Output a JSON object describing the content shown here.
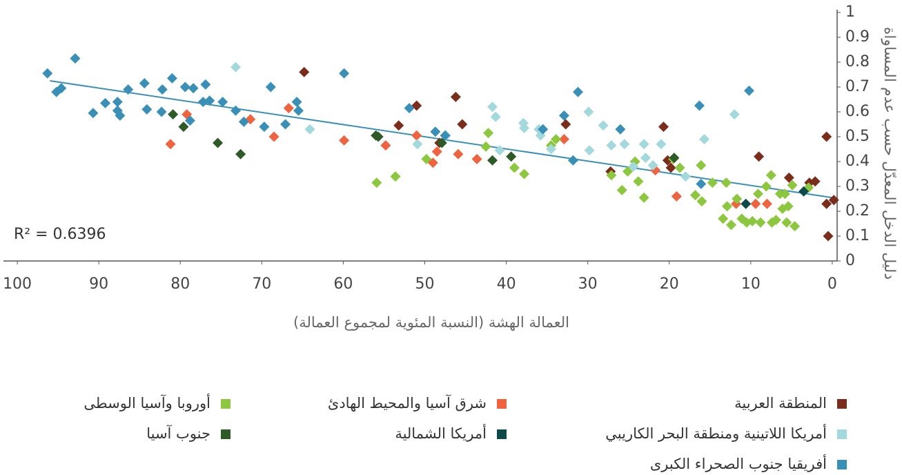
{
  "chart_data": {
    "type": "scatter",
    "xlabel": "العمالة الهشة (النسبة المئوية لمجموع العمالة)",
    "ylabel": "دليل الدخل المعدّل حسب عدم المساواة",
    "annotation": "R² = 0.6396",
    "xlim": [
      101.7,
      -0.6
    ],
    "ylim": [
      0,
      1
    ],
    "xticks": [
      100,
      90,
      80,
      70,
      60,
      50,
      40,
      30,
      20,
      10,
      0
    ],
    "yticks": [
      0,
      0.1,
      0.2,
      0.3,
      0.4,
      0.5,
      0.6,
      0.7,
      0.8,
      0.9,
      1
    ],
    "trend": {
      "color": "#3a8fb7",
      "x": [
        96,
        0
      ],
      "y": [
        0.725,
        0.255
      ]
    },
    "series": [
      {
        "name": "المنطقة العربية",
        "color": "#7b2d1b",
        "x": [
          64.8,
          46.2,
          51,
          53.2,
          45.4,
          32.7,
          48.2,
          20.7,
          27.2,
          20.2,
          19.8,
          9,
          5.3,
          0.7,
          2.8,
          2.1,
          -0.2,
          0.7,
          0.5
        ],
        "values": [
          0.76,
          0.66,
          0.625,
          0.545,
          0.55,
          0.55,
          0.475,
          0.54,
          0.36,
          0.405,
          0.375,
          0.42,
          0.335,
          0.5,
          0.315,
          0.32,
          0.245,
          0.23,
          0.1
        ]
      },
      {
        "name": "شرق آسيا والمحيط الهادئ",
        "color": "#ee6340",
        "x": [
          81.2,
          79.2,
          71.4,
          68.5,
          66.7,
          59.9,
          54.8,
          51,
          48.5,
          49,
          45.9,
          43.6,
          32.9,
          21.7,
          19.1,
          9.4,
          8,
          11.8
        ],
        "values": [
          0.47,
          0.59,
          0.57,
          0.5,
          0.615,
          0.485,
          0.465,
          0.505,
          0.44,
          0.395,
          0.43,
          0.41,
          0.49,
          0.365,
          0.26,
          0.23,
          0.23,
          0.23
        ]
      },
      {
        "name": "أوروبا وآسيا الوسطى",
        "color": "#8dc63f",
        "x": [
          55.9,
          53.6,
          49.8,
          42.5,
          42.2,
          39,
          37.8,
          34.5,
          33.9,
          27.1,
          25.8,
          25.1,
          24.2,
          23.8,
          23.1,
          19.5,
          18.7,
          16.1,
          16.8,
          16,
          14.7,
          13,
          13.4,
          12.9,
          12.4,
          11.7,
          11.1,
          10.5,
          9.8,
          9.1,
          8.8,
          8.1,
          7.5,
          7.4,
          6.9,
          6.4,
          6.1,
          5.8,
          5.6,
          5.4,
          4.9,
          4.6,
          2.9
        ],
        "values": [
          0.315,
          0.34,
          0.41,
          0.46,
          0.515,
          0.375,
          0.35,
          0.465,
          0.49,
          0.345,
          0.285,
          0.36,
          0.4,
          0.32,
          0.255,
          0.41,
          0.375,
          0.385,
          0.265,
          0.24,
          0.315,
          0.315,
          0.17,
          0.22,
          0.145,
          0.25,
          0.17,
          0.155,
          0.16,
          0.27,
          0.155,
          0.3,
          0.345,
          0.155,
          0.165,
          0.27,
          0.21,
          0.27,
          0.155,
          0.22,
          0.305,
          0.14,
          0.295
        ]
      },
      {
        "name": "أمريكا اللاتينية ومنطقة البحر الكاريبي",
        "color": "#a3d9dc",
        "x": [
          73.2,
          64.1,
          41.7,
          41.3,
          40.8,
          47.4,
          50.9,
          37.9,
          37.8,
          36,
          35.8,
          34.5,
          29.9,
          28.1,
          29.8,
          27.1,
          25.5,
          23.1,
          22.9,
          24.4,
          22,
          21,
          18,
          15.7,
          12
        ],
        "values": [
          0.78,
          0.53,
          0.62,
          0.58,
          0.445,
          0.505,
          0.47,
          0.555,
          0.535,
          0.53,
          0.505,
          0.45,
          0.6,
          0.545,
          0.445,
          0.465,
          0.47,
          0.47,
          0.415,
          0.38,
          0.385,
          0.47,
          0.34,
          0.49,
          0.59
        ]
      },
      {
        "name": "أمريكا الشمالية",
        "color": "#0e4a4a",
        "x": [
          10.6,
          3.5
        ],
        "values": [
          0.23,
          0.28
        ]
      },
      {
        "name": "جنوب آسيا",
        "color": "#2d5a27",
        "x": [
          80.9,
          79.6,
          75.4,
          72.6,
          56,
          55.7,
          47.9,
          41.7,
          39.4,
          19.4
        ],
        "values": [
          0.59,
          0.54,
          0.475,
          0.43,
          0.505,
          0.5,
          0.475,
          0.405,
          0.42,
          0.415
        ]
      },
      {
        "name": "أفريقيا جنوب الصحراء الكبرى",
        "color": "#3a8fb7",
        "x": [
          96.3,
          92.9,
          95.2,
          94.6,
          90.7,
          89.2,
          87.7,
          87.7,
          87.4,
          86.4,
          84.4,
          84.1,
          82.2,
          82.3,
          81,
          79.4,
          78.4,
          78.8,
          76.9,
          77.2,
          76.4,
          74.8,
          73.2,
          72.2,
          69.7,
          68.9,
          67.1,
          65.7,
          65.5,
          59.9,
          51.9,
          48.7,
          47.5,
          35.5,
          32.9,
          31.2,
          31.8,
          26,
          16.3,
          16.1,
          10.2
        ],
        "values": [
          0.755,
          0.815,
          0.68,
          0.695,
          0.595,
          0.635,
          0.64,
          0.605,
          0.585,
          0.69,
          0.715,
          0.61,
          0.69,
          0.6,
          0.735,
          0.7,
          0.695,
          0.565,
          0.71,
          0.64,
          0.645,
          0.64,
          0.605,
          0.56,
          0.54,
          0.7,
          0.55,
          0.64,
          0.605,
          0.755,
          0.615,
          0.52,
          0.505,
          0.53,
          0.585,
          0.68,
          0.405,
          0.53,
          0.625,
          0.31,
          0.685
        ]
      }
    ]
  }
}
